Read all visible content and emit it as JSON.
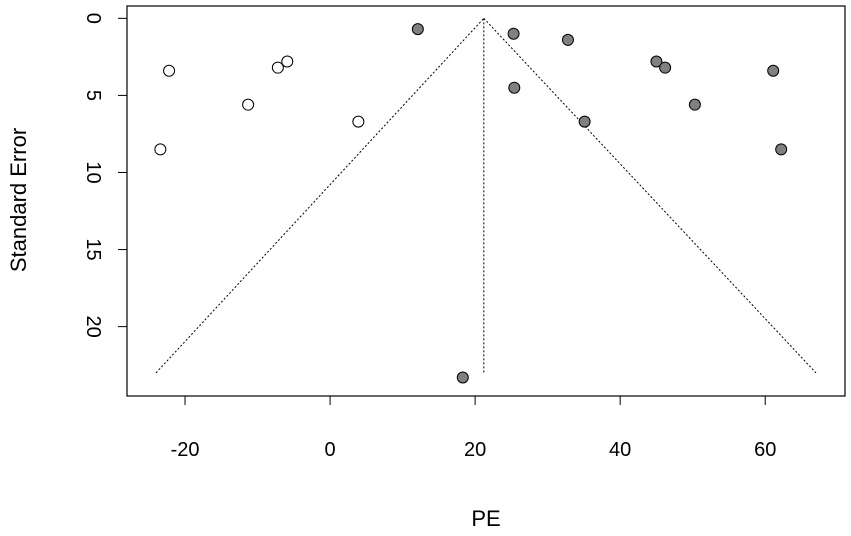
{
  "chart_data": {
    "type": "scatter",
    "title": "",
    "xlabel": "PE",
    "ylabel": "Standard Error",
    "xlim": [
      -28,
      71
    ],
    "ylim": [
      24.5,
      -0.8
    ],
    "xticks": [
      -20,
      0,
      20,
      40,
      60
    ],
    "yticks": [
      0,
      5,
      10,
      15,
      20
    ],
    "funnel": {
      "apex_x": 21.2,
      "apex_y": 0,
      "base_y": 23,
      "left_x": -24,
      "right_x": 67
    },
    "series": [
      {
        "fill": "#ffffff",
        "points": [
          {
            "x": -22.2,
            "y": 3.4
          },
          {
            "x": -23.4,
            "y": 8.5
          },
          {
            "x": -11.3,
            "y": 5.6
          },
          {
            "x": -7.2,
            "y": 3.2
          },
          {
            "x": -5.9,
            "y": 2.8
          },
          {
            "x": 3.9,
            "y": 6.7
          }
        ]
      },
      {
        "fill": "#808080",
        "points": [
          {
            "x": 12.1,
            "y": 0.7
          },
          {
            "x": 18.3,
            "y": 23.3
          },
          {
            "x": 25.3,
            "y": 1.0
          },
          {
            "x": 25.4,
            "y": 4.5
          },
          {
            "x": 32.8,
            "y": 1.4
          },
          {
            "x": 35.1,
            "y": 6.7
          },
          {
            "x": 45.0,
            "y": 2.8
          },
          {
            "x": 46.2,
            "y": 3.2
          },
          {
            "x": 50.3,
            "y": 5.6
          },
          {
            "x": 61.1,
            "y": 3.4
          },
          {
            "x": 62.2,
            "y": 8.5
          }
        ]
      }
    ]
  }
}
